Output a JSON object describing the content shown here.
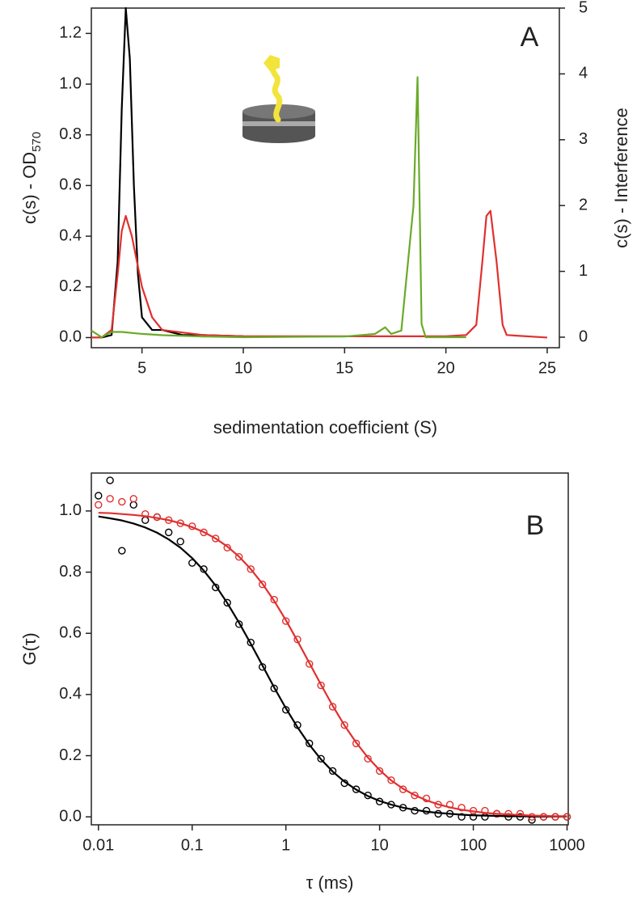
{
  "chart_data": [
    {
      "type": "line",
      "annotation": "A",
      "xlabel": "sedimentation coefficient (S)",
      "ylabel": "c(s) - OD",
      "ylabel_subscript": "570",
      "y2label": "c(s) - Interference",
      "xlim": [
        2.5,
        25.6
      ],
      "xticks": [
        5,
        10,
        15,
        20,
        25
      ],
      "ylim": [
        -0.04,
        1.3
      ],
      "yticks": [
        {
          "value": 0,
          "label": "0.0"
        },
        {
          "value": 0.2,
          "label": "0.2"
        },
        {
          "value": 0.4,
          "label": "0.4"
        },
        {
          "value": 0.6,
          "label": "0.6"
        },
        {
          "value": 0.8,
          "label": "0.8"
        },
        {
          "value": 1.0,
          "label": "1.0"
        },
        {
          "value": 1.2,
          "label": "1.2"
        }
      ],
      "y2lim": [
        -0.16,
        5.0
      ],
      "y2ticks": [
        0,
        1,
        2,
        3,
        4,
        5
      ],
      "series": [
        {
          "color": "#000000",
          "x": [
            2.5,
            3,
            3.5,
            3.8,
            4,
            4.2,
            4.4,
            4.6,
            4.8,
            5,
            5.5,
            6,
            6.5,
            7,
            8,
            10
          ],
          "values": [
            0,
            0,
            0.01,
            0.3,
            0.9,
            1.3,
            1.1,
            0.6,
            0.25,
            0.08,
            0.03,
            0.03,
            0.02,
            0.01,
            0.01,
            0.005
          ]
        },
        {
          "color": "#e0302e",
          "x": [
            2.5,
            3,
            3.5,
            3.8,
            4,
            4.2,
            4.5,
            5,
            5.5,
            6,
            7,
            8,
            10,
            15,
            20,
            21,
            21.5,
            21.8,
            22,
            22.2,
            22.5,
            22.8,
            23,
            25
          ],
          "values": [
            0,
            0,
            0.03,
            0.25,
            0.42,
            0.48,
            0.4,
            0.2,
            0.08,
            0.03,
            0.02,
            0.01,
            0.005,
            0.005,
            0.005,
            0.01,
            0.05,
            0.3,
            0.48,
            0.5,
            0.3,
            0.05,
            0.01,
            0
          ]
        },
        {
          "color": "#6aaa2a",
          "axis": "y2",
          "x": [
            2.5,
            3,
            3.5,
            4,
            5,
            6,
            8,
            10,
            15,
            16.5,
            17,
            17.3,
            17.8,
            18.4,
            18.6,
            18.8,
            19,
            21
          ],
          "values": [
            0.1,
            0,
            0.08,
            0.08,
            0.05,
            0.03,
            0.01,
            0,
            0.01,
            0.05,
            0.15,
            0.05,
            0.1,
            2,
            3.95,
            0.2,
            0,
            0
          ]
        }
      ]
    },
    {
      "type": "scatter",
      "annotation": "B",
      "xlabel": "τ (ms)",
      "ylabel": "G(τ)",
      "xscale": "log",
      "xlim": [
        0.0084,
        1030
      ],
      "xticks": [
        0.01,
        0.1,
        1,
        10,
        100,
        1000
      ],
      "ylim": [
        -0.026,
        1.124
      ],
      "yticks": [
        {
          "value": 0,
          "label": "0.0"
        },
        {
          "value": 0.2,
          "label": "0.2"
        },
        {
          "value": 0.4,
          "label": "0.4"
        },
        {
          "value": 0.6,
          "label": "0.6"
        },
        {
          "value": 0.8,
          "label": "0.8"
        },
        {
          "value": 1.0,
          "label": "1.0"
        }
      ],
      "series": [
        {
          "color": "#000000",
          "mode": "markers",
          "x": [
            0.01,
            0.0133,
            0.0178,
            0.0237,
            0.0316,
            0.0422,
            0.0562,
            0.075,
            0.1,
            0.133,
            0.178,
            0.237,
            0.316,
            0.422,
            0.562,
            0.75,
            1,
            1.33,
            1.78,
            2.37,
            3.16,
            4.22,
            5.62,
            7.5,
            10,
            13.3,
            17.8,
            23.7,
            31.6,
            42.2,
            56.2,
            75,
            100,
            133,
            178,
            237,
            316,
            422,
            562,
            750,
            1000
          ],
          "values": [
            1.05,
            1.1,
            0.87,
            1.02,
            0.97,
            0.98,
            0.93,
            0.9,
            0.83,
            0.81,
            0.75,
            0.7,
            0.63,
            0.57,
            0.49,
            0.42,
            0.35,
            0.3,
            0.24,
            0.19,
            0.15,
            0.11,
            0.09,
            0.07,
            0.05,
            0.04,
            0.03,
            0.02,
            0.02,
            0.01,
            0.01,
            0.0,
            0.0,
            0.0,
            0.01,
            0.0,
            0.0,
            -0.01,
            0.0,
            0.0,
            0.0
          ]
        },
        {
          "color": "#e0302e",
          "mode": "markers",
          "x": [
            0.01,
            0.0133,
            0.0178,
            0.0237,
            0.0316,
            0.0422,
            0.0562,
            0.075,
            0.1,
            0.133,
            0.178,
            0.237,
            0.316,
            0.422,
            0.562,
            0.75,
            1,
            1.33,
            1.78,
            2.37,
            3.16,
            4.22,
            5.62,
            7.5,
            10,
            13.3,
            17.8,
            23.7,
            31.6,
            42.2,
            56.2,
            75,
            100,
            133,
            178,
            237,
            316,
            422,
            562,
            750,
            1000
          ],
          "values": [
            1.02,
            1.04,
            1.03,
            1.04,
            0.99,
            0.98,
            0.97,
            0.96,
            0.95,
            0.93,
            0.91,
            0.88,
            0.85,
            0.81,
            0.76,
            0.71,
            0.64,
            0.58,
            0.5,
            0.43,
            0.36,
            0.3,
            0.24,
            0.19,
            0.15,
            0.12,
            0.09,
            0.07,
            0.06,
            0.04,
            0.04,
            0.03,
            0.02,
            0.02,
            0.01,
            0.01,
            0.01,
            0.0,
            0.0,
            0.0,
            0.0
          ]
        },
        {
          "color": "#000000",
          "mode": "lines",
          "x": [
            0.01,
            0.0133,
            0.0178,
            0.0237,
            0.0316,
            0.0422,
            0.0562,
            0.075,
            0.1,
            0.133,
            0.178,
            0.237,
            0.316,
            0.422,
            0.562,
            0.75,
            1,
            1.33,
            1.78,
            2.37,
            3.16,
            4.22,
            5.62,
            7.5,
            10,
            13.3,
            17.8,
            23.7,
            31.6,
            42.2,
            56.2,
            75,
            100,
            133,
            178,
            237,
            316,
            422,
            562,
            750,
            1000
          ],
          "values": [
            0.982,
            0.976,
            0.969,
            0.959,
            0.946,
            0.929,
            0.907,
            0.88,
            0.846,
            0.805,
            0.756,
            0.699,
            0.635,
            0.566,
            0.495,
            0.423,
            0.355,
            0.293,
            0.236,
            0.188,
            0.148,
            0.115,
            0.089,
            0.068,
            0.052,
            0.04,
            0.03,
            0.023,
            0.017,
            0.013,
            0.01,
            0.007,
            0.005,
            0.004,
            0.003,
            0.002,
            0.002,
            0.001,
            0.001,
            0.001,
            0.001
          ]
        },
        {
          "color": "#e0302e",
          "mode": "lines",
          "x": [
            0.01,
            0.0133,
            0.0178,
            0.0237,
            0.0316,
            0.0422,
            0.0562,
            0.075,
            0.1,
            0.133,
            0.178,
            0.237,
            0.316,
            0.422,
            0.562,
            0.75,
            1,
            1.33,
            1.78,
            2.37,
            3.16,
            4.22,
            5.62,
            7.5,
            10,
            13.3,
            17.8,
            23.7,
            31.6,
            42.2,
            56.2,
            75,
            100,
            133,
            178,
            237,
            316,
            422,
            562,
            750,
            1000
          ],
          "values": [
            0.994,
            0.993,
            0.99,
            0.987,
            0.983,
            0.977,
            0.97,
            0.96,
            0.947,
            0.931,
            0.91,
            0.884,
            0.851,
            0.81,
            0.762,
            0.706,
            0.643,
            0.575,
            0.503,
            0.432,
            0.363,
            0.299,
            0.243,
            0.194,
            0.153,
            0.119,
            0.092,
            0.071,
            0.054,
            0.041,
            0.031,
            0.023,
            0.018,
            0.013,
            0.01,
            0.008,
            0.006,
            0.004,
            0.003,
            0.002,
            0.002
          ]
        }
      ]
    }
  ]
}
